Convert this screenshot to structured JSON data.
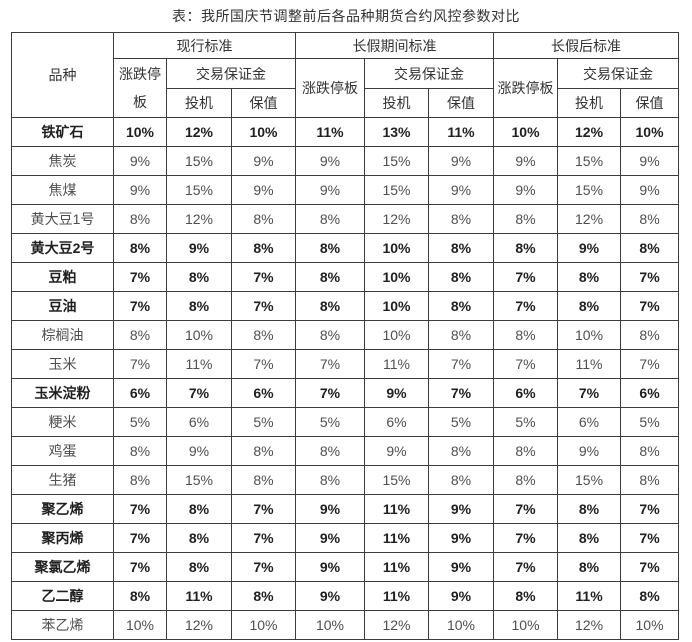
{
  "chart_data": {
    "type": "table",
    "title": "表：我所国庆节调整前后各品种期货合约风控参数对比",
    "header": {
      "product_column": "品种",
      "groups": [
        "现行标准",
        "长假期间标准",
        "长假后标准"
      ],
      "price_limit_label": "涨跌停板",
      "margin_label": "交易保证金",
      "speculation_label": "投机",
      "hedge_label": "保值"
    },
    "rows": [
      {
        "name": "铁矿石",
        "bold": true,
        "values": [
          "10%",
          "12%",
          "10%",
          "11%",
          "13%",
          "11%",
          "10%",
          "12%",
          "10%"
        ]
      },
      {
        "name": "焦炭",
        "bold": false,
        "values": [
          "9%",
          "15%",
          "9%",
          "9%",
          "15%",
          "9%",
          "9%",
          "15%",
          "9%"
        ]
      },
      {
        "name": "焦煤",
        "bold": false,
        "values": [
          "9%",
          "15%",
          "9%",
          "9%",
          "15%",
          "9%",
          "9%",
          "15%",
          "9%"
        ]
      },
      {
        "name": "黄大豆1号",
        "bold": false,
        "values": [
          "8%",
          "12%",
          "8%",
          "8%",
          "12%",
          "8%",
          "8%",
          "12%",
          "8%"
        ]
      },
      {
        "name": "黄大豆2号",
        "bold": true,
        "values": [
          "8%",
          "9%",
          "8%",
          "8%",
          "10%",
          "8%",
          "8%",
          "9%",
          "8%"
        ]
      },
      {
        "name": "豆粕",
        "bold": true,
        "values": [
          "7%",
          "8%",
          "7%",
          "8%",
          "10%",
          "8%",
          "7%",
          "8%",
          "7%"
        ]
      },
      {
        "name": "豆油",
        "bold": true,
        "values": [
          "7%",
          "8%",
          "7%",
          "8%",
          "10%",
          "8%",
          "7%",
          "8%",
          "7%"
        ]
      },
      {
        "name": "棕榈油",
        "bold": false,
        "values": [
          "8%",
          "10%",
          "8%",
          "8%",
          "10%",
          "8%",
          "8%",
          "10%",
          "8%"
        ]
      },
      {
        "name": "玉米",
        "bold": false,
        "values": [
          "7%",
          "11%",
          "7%",
          "7%",
          "11%",
          "7%",
          "7%",
          "11%",
          "7%"
        ]
      },
      {
        "name": "玉米淀粉",
        "bold": true,
        "values": [
          "6%",
          "7%",
          "6%",
          "7%",
          "9%",
          "7%",
          "6%",
          "7%",
          "6%"
        ]
      },
      {
        "name": "粳米",
        "bold": false,
        "values": [
          "5%",
          "6%",
          "5%",
          "5%",
          "6%",
          "5%",
          "5%",
          "6%",
          "5%"
        ]
      },
      {
        "name": "鸡蛋",
        "bold": false,
        "values": [
          "8%",
          "9%",
          "8%",
          "8%",
          "9%",
          "8%",
          "8%",
          "9%",
          "8%"
        ]
      },
      {
        "name": "生猪",
        "bold": false,
        "values": [
          "8%",
          "15%",
          "8%",
          "8%",
          "15%",
          "8%",
          "8%",
          "15%",
          "8%"
        ]
      },
      {
        "name": "聚乙烯",
        "bold": true,
        "values": [
          "7%",
          "8%",
          "7%",
          "9%",
          "11%",
          "9%",
          "7%",
          "8%",
          "7%"
        ]
      },
      {
        "name": "聚丙烯",
        "bold": true,
        "values": [
          "7%",
          "8%",
          "7%",
          "9%",
          "11%",
          "9%",
          "7%",
          "8%",
          "7%"
        ]
      },
      {
        "name": "聚氯乙烯",
        "bold": true,
        "values": [
          "7%",
          "8%",
          "7%",
          "9%",
          "11%",
          "9%",
          "7%",
          "8%",
          "7%"
        ]
      },
      {
        "name": "乙二醇",
        "bold": true,
        "values": [
          "8%",
          "11%",
          "8%",
          "9%",
          "11%",
          "9%",
          "8%",
          "11%",
          "8%"
        ]
      },
      {
        "name": "苯乙烯",
        "bold": false,
        "values": [
          "10%",
          "12%",
          "10%",
          "10%",
          "12%",
          "10%",
          "10%",
          "12%",
          "10%"
        ]
      }
    ]
  },
  "colors": {
    "border": "#3c3c3c",
    "text_regular": "#4f4f4f",
    "text_bold": "#1f1f1f",
    "header_text": "#333333",
    "background": "#ffffff"
  }
}
